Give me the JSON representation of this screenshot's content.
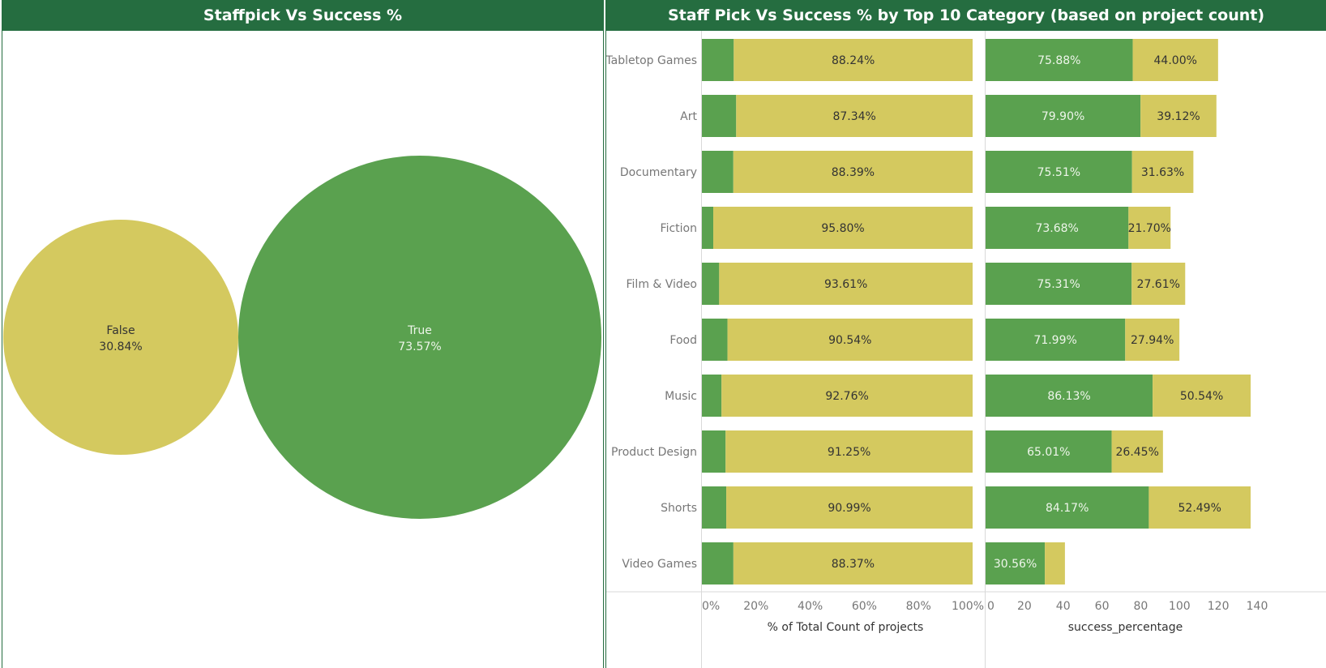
{
  "colors": {
    "header_bg": "#256d40",
    "header_text": "#ffffff",
    "true_green": "#5aa14f",
    "false_yellow": "#d4c95f",
    "axis_text": "#777777",
    "label_dark": "#333333",
    "label_light": "#eef5ea",
    "divider": "#d9d9d9"
  },
  "left_panel": {
    "title": "Staffpick Vs Success %"
  },
  "right_panel": {
    "title": "Staff Pick Vs Success % by Top 10 Category (based on project count)",
    "x_axis_left_label": "% of Total Count of projects",
    "x_axis_right_label": "success_percentage",
    "x_ticks_left": [
      "0%",
      "20%",
      "40%",
      "60%",
      "80%",
      "100%"
    ],
    "x_ticks_right": [
      "0",
      "20",
      "40",
      "60",
      "80",
      "100",
      "120",
      "140"
    ]
  },
  "chart_data": [
    {
      "type": "bubble",
      "title": "Staffpick Vs Success %",
      "items": [
        {
          "label": "False",
          "value": 30.84,
          "value_label": "30.84%",
          "color": "#d4c95f"
        },
        {
          "label": "True",
          "value": 73.57,
          "value_label": "73.57%",
          "color": "#5aa14f"
        }
      ]
    },
    {
      "type": "bar",
      "stacked": true,
      "orientation": "horizontal",
      "title": "Staff Pick Vs Success % by Top 10 Category (based on project count)",
      "xlabel": "% of Total Count of projects",
      "xlim": [
        0,
        100
      ],
      "categories": [
        "Tabletop Games",
        "Art",
        "Documentary",
        "Fiction",
        "Film & Video",
        "Food",
        "Music",
        "Product Design",
        "Shorts",
        "Video Games"
      ],
      "series": [
        {
          "values": [
            11.76,
            12.66,
            11.61,
            4.2,
            6.39,
            9.46,
            7.24,
            8.75,
            9.01,
            11.63
          ],
          "color": "#5aa14f"
        },
        {
          "values": [
            88.24,
            87.34,
            88.39,
            95.8,
            93.61,
            90.54,
            92.76,
            91.25,
            90.99,
            88.37
          ],
          "labels": [
            "88.24%",
            "87.34%",
            "88.39%",
            "95.80%",
            "93.61%",
            "90.54%",
            "92.76%",
            "91.25%",
            "90.99%",
            "88.37%"
          ],
          "color": "#d4c95f"
        }
      ]
    },
    {
      "type": "bar",
      "stacked": true,
      "orientation": "horizontal",
      "title": "Staff Pick Vs Success % by Top 10 Category (based on project count)",
      "xlabel": "success_percentage",
      "xlim": [
        0,
        140
      ],
      "categories": [
        "Tabletop Games",
        "Art",
        "Documentary",
        "Fiction",
        "Film & Video",
        "Food",
        "Music",
        "Product Design",
        "Shorts",
        "Video Games"
      ],
      "series": [
        {
          "values": [
            75.88,
            79.9,
            75.51,
            73.68,
            75.31,
            71.99,
            86.13,
            65.01,
            84.17,
            30.56
          ],
          "labels": [
            "75.88%",
            "79.90%",
            "75.51%",
            "73.68%",
            "75.31%",
            "71.99%",
            "86.13%",
            "65.01%",
            "84.17%",
            "30.56%"
          ],
          "color": "#5aa14f"
        },
        {
          "values": [
            44.0,
            39.12,
            31.63,
            21.7,
            27.61,
            27.94,
            50.54,
            26.45,
            52.49,
            10.35
          ],
          "labels": [
            "44.00%",
            "39.12%",
            "31.63%",
            "21.70%",
            "27.61%",
            "27.94%",
            "50.54%",
            "26.45%",
            "52.49%",
            ""
          ],
          "color": "#d4c95f"
        }
      ]
    }
  ]
}
